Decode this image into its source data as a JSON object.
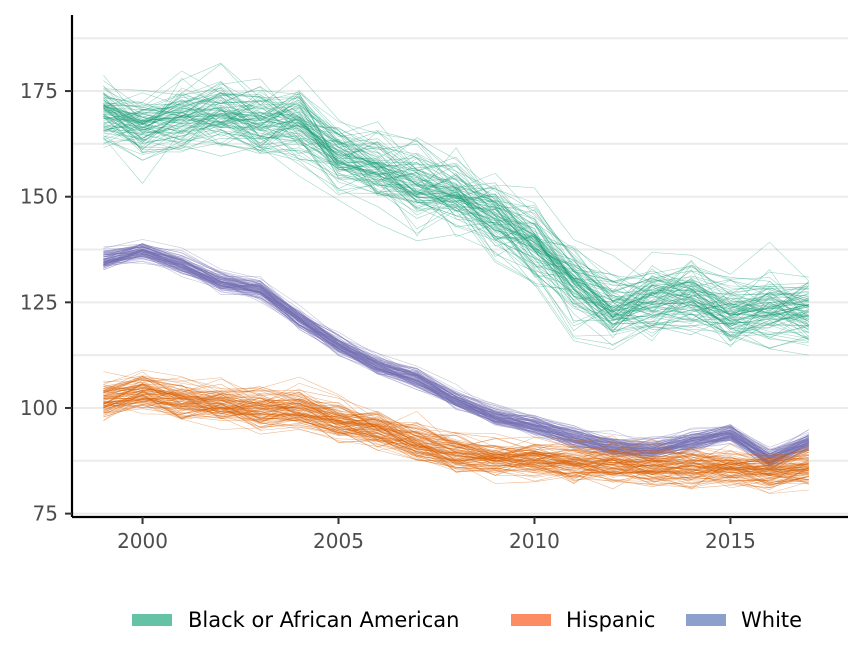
{
  "chart_data": {
    "type": "line",
    "title": "",
    "xlabel": "",
    "ylabel": "",
    "xlim": [
      1998.2,
      2018.0
    ],
    "ylim": [
      74.2,
      193.0
    ],
    "x_ticks": [
      "2000",
      "2005",
      "2010",
      "2015"
    ],
    "y_ticks": [
      "75",
      "100",
      "125",
      "150",
      "175"
    ],
    "grid": "horizontal",
    "legend_position": "bottom",
    "x": [
      1999,
      2000,
      2001,
      2002,
      2003,
      2004,
      2005,
      2006,
      2007,
      2008,
      2009,
      2010,
      2011,
      2012,
      2013,
      2014,
      2015,
      2016,
      2017
    ],
    "series": [
      {
        "name": "Black or African American",
        "color": "#1b9e77",
        "legend_color": "#66c2a5",
        "values": [
          170,
          166,
          168,
          170,
          167,
          167,
          159,
          156,
          153,
          150,
          144,
          138,
          129,
          123,
          125,
          126,
          122,
          123,
          122
        ],
        "spread": 6.0,
        "replicates": 100
      },
      {
        "name": "Hispanic",
        "color": "#d95f02",
        "legend_color": "#fc8d62",
        "values": [
          102,
          104,
          102,
          101,
          100,
          100,
          97,
          95,
          92,
          89,
          88,
          88,
          87,
          87,
          86,
          86,
          86,
          85,
          86
        ],
        "spread": 3.0,
        "replicates": 100
      },
      {
        "name": "White",
        "color": "#7570b3",
        "legend_color": "#8da0cb",
        "values": [
          135,
          137,
          134,
          130,
          128,
          121,
          115,
          110,
          107,
          102,
          98,
          96,
          93,
          91,
          90,
          92,
          94,
          88,
          92
        ],
        "spread": 1.6,
        "replicates": 100
      }
    ]
  }
}
